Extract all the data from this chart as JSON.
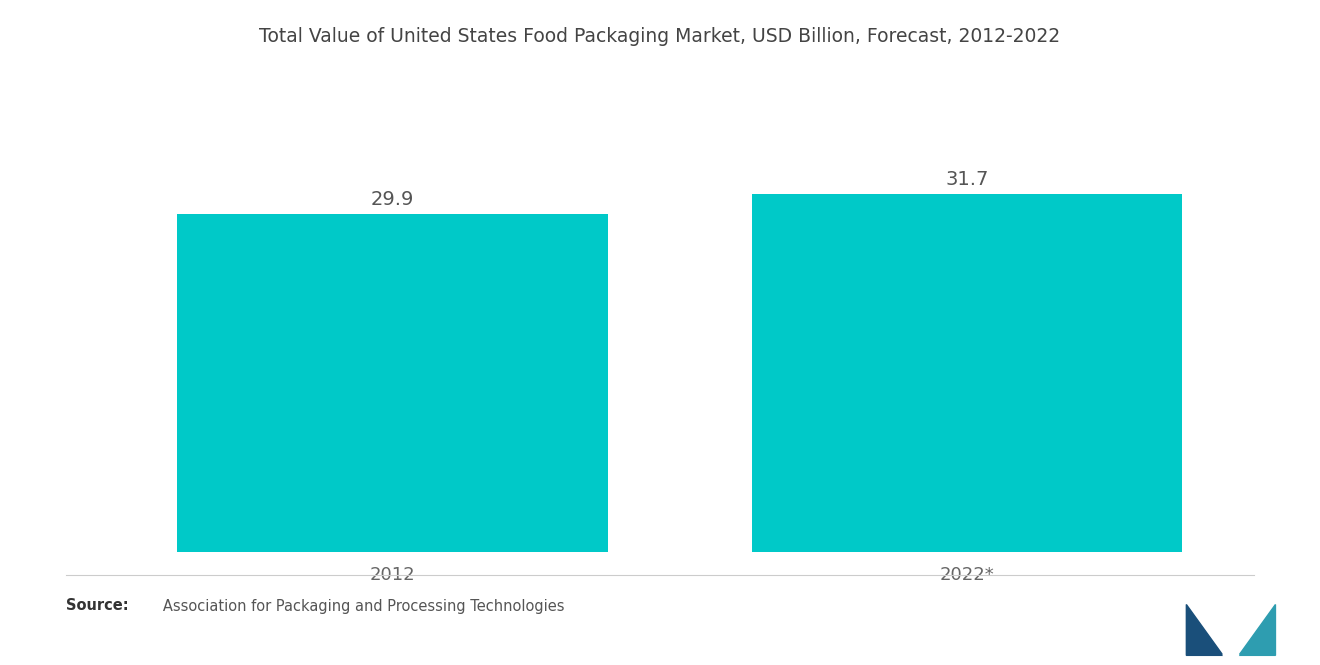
{
  "title": "Total Value of United States Food Packaging Market, USD Billion, Forecast, 2012-2022",
  "categories": [
    "2012",
    "2022*"
  ],
  "values": [
    29.9,
    31.7
  ],
  "bar_color": "#00C9C8",
  "background_color": "#ffffff",
  "value_fontsize": 14,
  "title_fontsize": 13.5,
  "xlabel_fontsize": 13,
  "source_bold": "Source:",
  "source_rest": "   Association for Packaging and Processing Technologies",
  "ylim": [
    0,
    40
  ],
  "bar_width": 0.75,
  "xlim": [
    -0.5,
    1.5
  ]
}
